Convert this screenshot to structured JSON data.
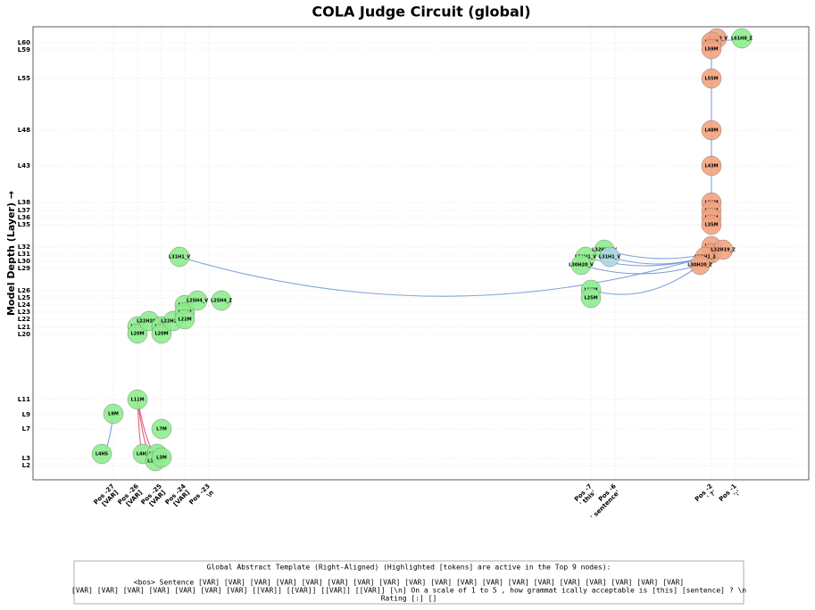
{
  "title": "COLA Judge Circuit (global)",
  "y_axis_label": "Model Depth (Layer) →",
  "y_ticks": [
    "L2",
    "L3",
    "L7",
    "L9",
    "L11",
    "L20",
    "L21",
    "L22",
    "L23",
    "L24",
    "L25",
    "L26",
    "L29",
    "L30",
    "L31",
    "L32",
    "L35",
    "L36",
    "L37",
    "L38",
    "L43",
    "L48",
    "L55",
    "L59",
    "L60"
  ],
  "x_ticks": [
    {
      "pos": "Pos -27",
      "token": "[VAR]"
    },
    {
      "pos": "Pos -26",
      "token": "[VAR]"
    },
    {
      "pos": "Pos -25",
      "token": "[VAR]"
    },
    {
      "pos": "Pos -24",
      "token": "[VAR]"
    },
    {
      "pos": "Pos -23",
      "token": "\\n"
    },
    {
      "pos": "Pos -7",
      "token": "' this'"
    },
    {
      "pos": "Pos -6",
      "token": "' sentence'"
    },
    {
      "pos": "Pos -2",
      "token": "' ?'"
    },
    {
      "pos": "Pos -1",
      "token": "':'"
    }
  ],
  "nodes": [
    {
      "label": "L4H5"
    },
    {
      "label": "L9M"
    },
    {
      "label": "L11M"
    },
    {
      "label": "L4H1"
    },
    {
      "label": "L4H11"
    },
    {
      "label": "L3H11"
    },
    {
      "label": "L3M"
    },
    {
      "label": "L7M"
    },
    {
      "label": "L21M"
    },
    {
      "label": "L20M"
    },
    {
      "label": "L22H20_V"
    },
    {
      "label": "L21M"
    },
    {
      "label": "L20M"
    },
    {
      "label": "L22H20_Z"
    },
    {
      "label": "L24M"
    },
    {
      "label": "L23M"
    },
    {
      "label": "L22M"
    },
    {
      "label": "L25H4_V"
    },
    {
      "label": "L25H4_Z"
    },
    {
      "label": "L31H1_V"
    },
    {
      "label": "L26M"
    },
    {
      "label": "L25M"
    },
    {
      "label": "L31H1_V"
    },
    {
      "label": "L30H20_V"
    },
    {
      "label": "L32H19_V"
    },
    {
      "label": "L31H1_V"
    },
    {
      "label": "L61H8_Z"
    },
    {
      "label": "L61H8_V"
    },
    {
      "label": "L60M"
    },
    {
      "label": "L59M"
    },
    {
      "label": "L55M"
    },
    {
      "label": "L48M"
    },
    {
      "label": "L43M"
    },
    {
      "label": "L38M"
    },
    {
      "label": "L37M"
    },
    {
      "label": "L36M"
    },
    {
      "label": "L35M"
    },
    {
      "label": "L32M"
    },
    {
      "label": "L31M"
    },
    {
      "label": "L31H1_Z"
    },
    {
      "label": "L32H19_Z"
    },
    {
      "label": "L30H20_Z"
    }
  ],
  "footer": {
    "heading": "Global Abstract Template (Right-Aligned) (Highlighted [tokens] are active in the Top 9 nodes):",
    "lines": [
      "<bos> Sentence [VAR] [VAR] [VAR] [VAR] [VAR] [VAR] [VAR] [VAR] [VAR] [VAR] [VAR] [VAR] [VAR] [VAR] [VAR] [VAR] [VAR] [VAR] [VAR]",
      "[VAR] [VAR] [VAR] [VAR] [VAR] [VAR] [VAR] [[VAR]] [[VAR]] [[VAR]] [[VAR]] [\\n] On a scale of  1 to  5 , how grammat ically acceptable is [this] [sentence] ? \\n",
      "Rating [:] []"
    ]
  }
}
